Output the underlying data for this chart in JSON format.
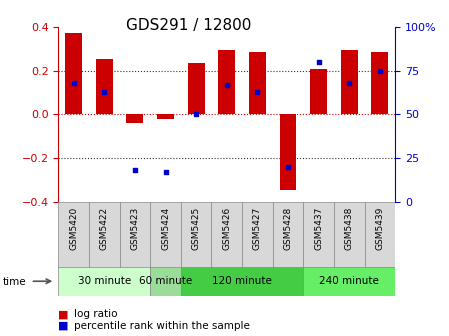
{
  "title": "GDS291 / 12800",
  "samples": [
    "GSM5420",
    "GSM5422",
    "GSM5423",
    "GSM5424",
    "GSM5425",
    "GSM5426",
    "GSM5427",
    "GSM5428",
    "GSM5437",
    "GSM5438",
    "GSM5439"
  ],
  "log_ratio": [
    0.37,
    0.255,
    -0.04,
    -0.02,
    0.235,
    0.295,
    0.285,
    -0.345,
    0.205,
    0.295,
    0.285
  ],
  "percentile": [
    68,
    63,
    18,
    17,
    50,
    67,
    63,
    20,
    80,
    68,
    75
  ],
  "ylim": [
    -0.4,
    0.4
  ],
  "yticks_left": [
    -0.4,
    -0.2,
    0,
    0.2,
    0.4
  ],
  "yticks_right": [
    0,
    25,
    50,
    75,
    100
  ],
  "bar_color": "#cc0000",
  "dot_color": "#0000cc",
  "time_groups": [
    {
      "label": "30 minute",
      "start": 0,
      "end": 3,
      "color": "#ccffcc"
    },
    {
      "label": "60 minute",
      "start": 3,
      "end": 4,
      "color": "#aaeea a"
    },
    {
      "label": "120 minute",
      "start": 4,
      "end": 8,
      "color": "#44cc44"
    },
    {
      "label": "240 minute",
      "start": 8,
      "end": 11,
      "color": "#66ee66"
    }
  ],
  "title_fontsize": 11,
  "axis_color_left": "#cc0000",
  "axis_color_right": "#0000cc",
  "zero_line_color": "#cc0000",
  "dot_line_color": "#333333",
  "sample_bg": "#d8d8d8"
}
